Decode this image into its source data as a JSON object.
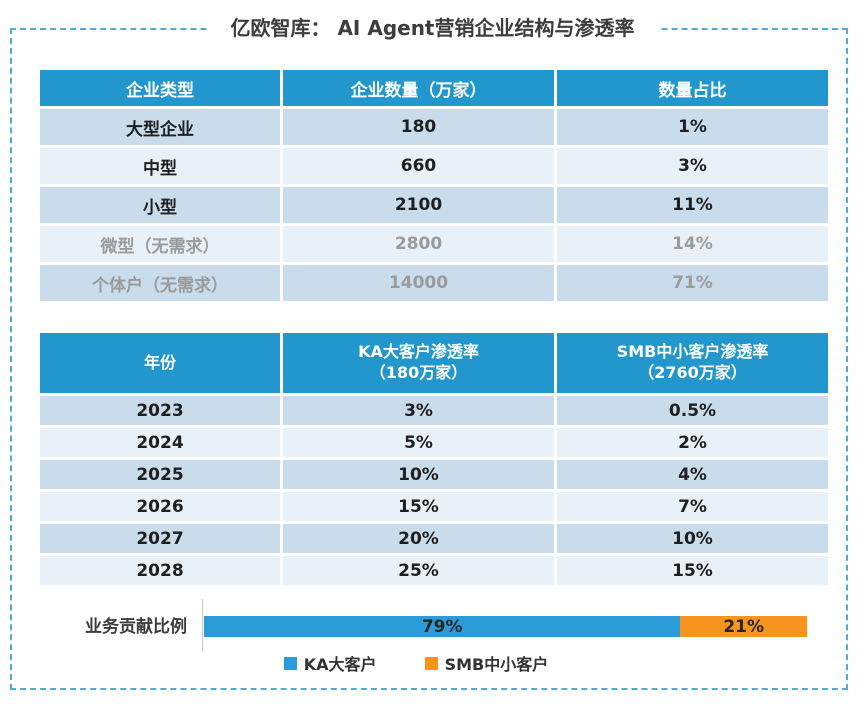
{
  "title": "亿欧智库： AI Agent营销企业结构与渗透率",
  "colors": {
    "header_blue": "#2197ce",
    "row_dark": "#c9dcec",
    "row_light": "#e9f1f8",
    "dashed_border": "#4daccf",
    "muted_text": "#9b9b9b",
    "ka_blue": "#2b9cd8",
    "smb_orange": "#f7941e"
  },
  "table_enterprise": {
    "headers": [
      "企业类型",
      "企业数量（万家）",
      "数量占比"
    ],
    "rows": [
      {
        "cells": [
          "大型企业",
          "180",
          "1%"
        ]
      },
      {
        "cells": [
          "中型",
          "660",
          "3%"
        ]
      },
      {
        "cells": [
          "小型",
          "2100",
          "11%"
        ]
      },
      {
        "cells": [
          "微型（无需求）",
          "2800",
          "14%"
        ]
      },
      {
        "cells": [
          "个体户（无需求）",
          "14000",
          "71%"
        ]
      }
    ]
  },
  "table_penetration": {
    "headers": [
      {
        "lines": [
          "年份",
          ""
        ]
      },
      {
        "lines": [
          "KA大客户渗透率",
          "（180万家）"
        ]
      },
      {
        "lines": [
          "SMB中小客户渗透率",
          "（2760万家）"
        ]
      }
    ],
    "rows": [
      {
        "cells": [
          "2023",
          "3%",
          "0.5%"
        ]
      },
      {
        "cells": [
          "2024",
          "5%",
          "2%"
        ]
      },
      {
        "cells": [
          "2025",
          "10%",
          "4%"
        ]
      },
      {
        "cells": [
          "2026",
          "15%",
          "7%"
        ]
      },
      {
        "cells": [
          "2027",
          "20%",
          "10%"
        ]
      },
      {
        "cells": [
          "2028",
          "25%",
          "15%"
        ]
      }
    ]
  },
  "contribution": {
    "label": "业务贡献比例",
    "segments": [
      {
        "name": "KA大客户",
        "value": 79,
        "display": "79%",
        "color": "#2b9cd8"
      },
      {
        "name": "SMB中小客户",
        "value": 21,
        "display": "21%",
        "color": "#f7941e"
      }
    ],
    "legend": [
      {
        "label": "KA大客户",
        "color": "#2b9cd8"
      },
      {
        "label": "SMB中小客户",
        "color": "#f7941e"
      }
    ]
  },
  "chart_data": [
    {
      "type": "table",
      "title": "企业结构",
      "columns": [
        "企业类型",
        "企业数量（万家）",
        "数量占比"
      ],
      "rows": [
        [
          "大型企业",
          180,
          "1%"
        ],
        [
          "中型",
          660,
          "3%"
        ],
        [
          "小型",
          2100,
          "11%"
        ],
        [
          "微型（无需求）",
          2800,
          "14%"
        ],
        [
          "个体户（无需求）",
          14000,
          "71%"
        ]
      ]
    },
    {
      "type": "table",
      "title": "渗透率预测",
      "columns": [
        "年份",
        "KA大客户渗透率（180万家）",
        "SMB中小客户渗透率（2760万家）"
      ],
      "rows": [
        [
          "2023",
          "3%",
          "0.5%"
        ],
        [
          "2024",
          "5%",
          "2%"
        ],
        [
          "2025",
          "10%",
          "4%"
        ],
        [
          "2026",
          "15%",
          "7%"
        ],
        [
          "2027",
          "20%",
          "10%"
        ],
        [
          "2028",
          "25%",
          "15%"
        ]
      ]
    },
    {
      "type": "bar",
      "title": "业务贡献比例",
      "stacked": true,
      "orientation": "horizontal",
      "categories": [
        "业务贡献比例"
      ],
      "series": [
        {
          "name": "KA大客户",
          "values": [
            79
          ],
          "color": "#2b9cd8"
        },
        {
          "name": "SMB中小客户",
          "values": [
            21
          ],
          "color": "#f7941e"
        }
      ],
      "unit": "%",
      "xlim": [
        0,
        100
      ],
      "legend_position": "bottom"
    }
  ]
}
